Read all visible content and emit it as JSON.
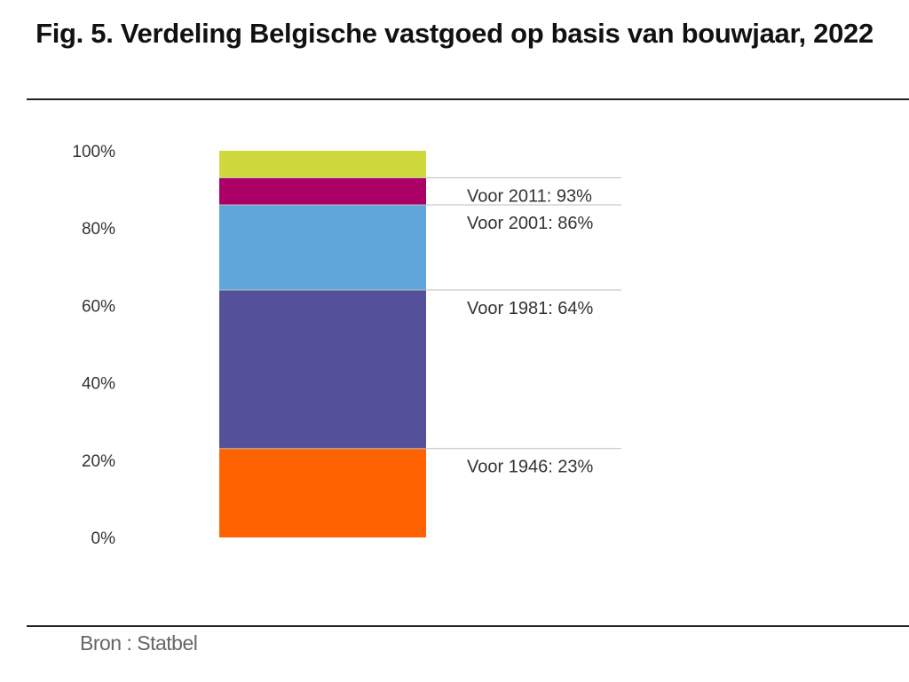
{
  "figure": {
    "title": "Fig. 5. Verdeling Belgische vastgoed op basis van bouwjaar, 2022",
    "source": "Bron : Statbel"
  },
  "chart_data": {
    "type": "bar",
    "stacked": true,
    "title": "Fig. 5. Verdeling Belgische vastgoed op basis van bouwjaar, 2022",
    "categories": [
      ""
    ],
    "ylim": [
      0,
      100
    ],
    "yticks": [
      {
        "value": 0,
        "label": "0%"
      },
      {
        "value": 20,
        "label": "20%"
      },
      {
        "value": 40,
        "label": "40%"
      },
      {
        "value": 60,
        "label": "60%"
      },
      {
        "value": 80,
        "label": "80%"
      },
      {
        "value": 100,
        "label": "100%"
      }
    ],
    "grid": false,
    "series": [
      {
        "values": [
          23
        ],
        "color": "#FF6200"
      },
      {
        "values": [
          41
        ],
        "color": "#525199"
      },
      {
        "values": [
          22
        ],
        "color": "#60A6DA"
      },
      {
        "values": [
          7
        ],
        "color": "#AB0066"
      },
      {
        "values": [
          7
        ],
        "color": "#D0D93C"
      }
    ],
    "annotations": [
      {
        "label": "Voor 1946: 23%",
        "value": 23
      },
      {
        "label": "Voor 1981: 64%",
        "value": 64
      },
      {
        "label": "Voor 2001: 86%",
        "value": 86
      },
      {
        "label": "Voor 2011: 93%",
        "value": 93
      }
    ]
  }
}
